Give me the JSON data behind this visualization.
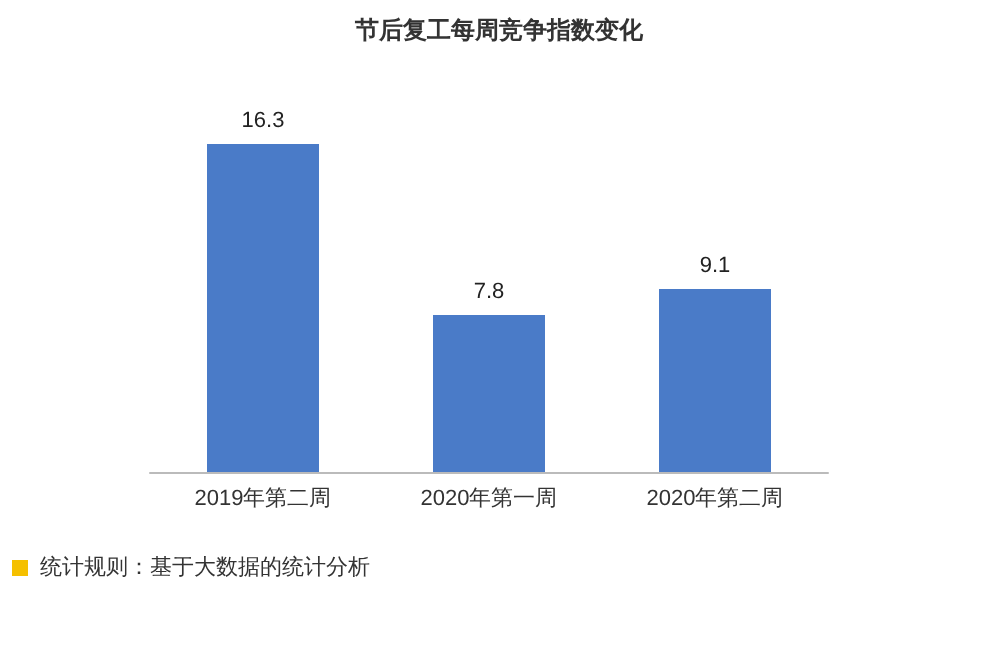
{
  "chart_data": {
    "type": "bar",
    "title": "节后复工每周竞争指数变化",
    "categories": [
      "2019年第二周",
      "2020年第一周",
      "2020年第二周"
    ],
    "values": [
      16.3,
      7.8,
      9.1
    ],
    "color": "#4a7bc8",
    "data_labels": true,
    "annotations": [
      "统计规则：基于大数据的统计分析"
    ]
  }
}
